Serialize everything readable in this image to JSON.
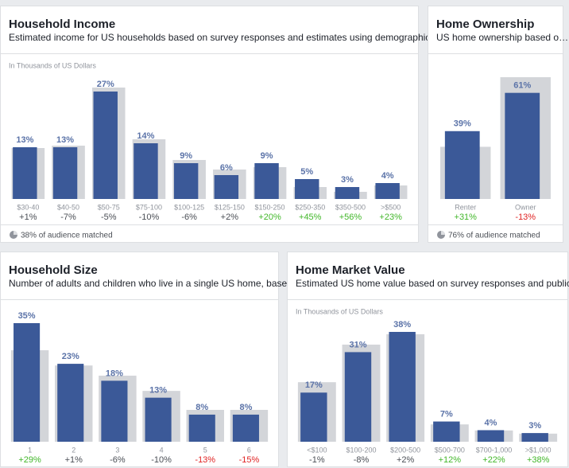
{
  "panels": [
    {
      "title": "Household Income",
      "subtitle": "Estimated income for US households based on survey responses and estimates using demographic dat…",
      "axis_note": "In Thousands of US Dollars",
      "categories": [
        "$30-40",
        "$40-50",
        "$50-75",
        "$75-100",
        "$100-125",
        "$125-150",
        "$150-250",
        "$250-350",
        "$350-500",
        ">$500"
      ],
      "values": [
        13,
        13,
        27,
        14,
        9,
        6,
        9,
        5,
        3,
        4
      ],
      "value_labels": [
        "13%",
        "13%",
        "27%",
        "14%",
        "9%",
        "6%",
        "9%",
        "5%",
        "3%",
        "4%"
      ],
      "benchmark": [
        12.8,
        13.4,
        28,
        15,
        9.8,
        7.4,
        8,
        3,
        1.8,
        3.4
      ],
      "changes": [
        "+1%",
        "-7%",
        "-5%",
        "-10%",
        "-6%",
        "+2%",
        "+20%",
        "+45%",
        "+56%",
        "+23%"
      ],
      "change_colors": [
        "#4b4f56",
        "#4b4f56",
        "#4b4f56",
        "#4b4f56",
        "#4b4f56",
        "#4b4f56",
        "#42b72a",
        "#42b72a",
        "#42b72a",
        "#42b72a"
      ],
      "footer": "38% of audience matched"
    },
    {
      "title": "Home Ownership",
      "subtitle": "US home ownership based o…",
      "categories": [
        "Renter",
        "Owner"
      ],
      "values": [
        39,
        61
      ],
      "value_labels": [
        "39%",
        "61%"
      ],
      "benchmark": [
        30,
        70
      ],
      "changes": [
        "+31%",
        "-13%"
      ],
      "change_colors": [
        "#42b72a",
        "#e02424"
      ],
      "footer": "76% of audience matched"
    },
    {
      "title": "Household Size",
      "subtitle": "Number of adults and children who live in a single US home, base…",
      "categories": [
        "1",
        "2",
        "3",
        "4",
        "5",
        "6"
      ],
      "values": [
        35,
        23,
        18,
        13,
        8,
        8
      ],
      "value_labels": [
        "35%",
        "23%",
        "18%",
        "13%",
        "8%",
        "8%"
      ],
      "benchmark": [
        27,
        22.5,
        19.5,
        15,
        9.4,
        9.4
      ],
      "changes": [
        "+29%",
        "+1%",
        "-6%",
        "-10%",
        "-13%",
        "-15%"
      ],
      "change_colors": [
        "#42b72a",
        "#4b4f56",
        "#4b4f56",
        "#4b4f56",
        "#e02424",
        "#e02424"
      ]
    },
    {
      "title": "Home Market Value",
      "subtitle": "Estimated US home value based on survey responses and publicly…",
      "axis_note": "In Thousands of US Dollars",
      "categories": [
        "<$100",
        "$100-200",
        "$200-500",
        "$500-700",
        "$700-1,000",
        ">$1,000"
      ],
      "values": [
        17,
        31,
        38,
        7,
        4,
        3
      ],
      "value_labels": [
        "17%",
        "31%",
        "38%",
        "7%",
        "4%",
        "3%"
      ],
      "benchmark": [
        20.6,
        33.6,
        37.2,
        6,
        3.9,
        2.8
      ],
      "changes": [
        "-1%",
        "-8%",
        "+2%",
        "+12%",
        "+22%",
        "+38%"
      ],
      "change_colors": [
        "#4b4f56",
        "#4b4f56",
        "#4b4f56",
        "#42b72a",
        "#42b72a",
        "#42b72a"
      ]
    }
  ]
}
